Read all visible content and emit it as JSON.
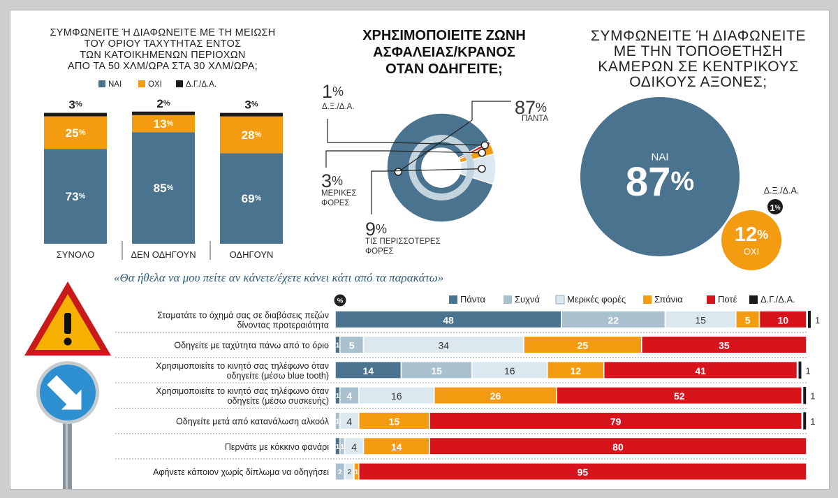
{
  "colors": {
    "dark": "#4a7390",
    "medium": "#a9c0cf",
    "light": "#dce8ef",
    "orange": "#f39c12",
    "red": "#d7141c",
    "black": "#1a1a1a",
    "title": "#2c5c7d",
    "text": "#222222"
  },
  "chart_data": [
    {
      "type": "bar",
      "stacked": true,
      "title_lines": [
        "ΣΥΜΦΩΝΕΙΤΕ Ή ΔΙΑΦΩΝΕΙΤΕ ΜΕ ΤΗ ΜΕΙΩΣΗ",
        "ΤΟΥ ΟΡΙΟΥ ΤΑΧΥΤΗΤΑΣ ΕΝΤΟΣ",
        "ΤΩΝ ΚΑΤΟΙΚΗΜΕΝΩΝ ΠΕΡΙΟΧΩΝ",
        "ΑΠΟ ΤΑ 50 ΧΛΜ/ΩΡΑ ΣΤΑ 30 ΧΛΜ/ΩΡΑ;"
      ],
      "unit": "%",
      "categories": [
        "ΣΥΝΟΛΟ",
        "ΔΕΝ ΟΔΗΓΟΥΝ",
        "ΟΔΗΓΟΥΝ"
      ],
      "series": [
        {
          "name": "ΝΑΙ",
          "values": [
            73,
            85,
            69
          ]
        },
        {
          "name": "ΟΧΙ",
          "values": [
            25,
            13,
            28
          ]
        },
        {
          "name": "Δ.Γ./Δ.Α.",
          "values": [
            3,
            2,
            3
          ]
        }
      ]
    },
    {
      "type": "pie",
      "donut": true,
      "title_lines": [
        "ΧΡΗΣΙΜΟΠΟΙΕΙΤΕ ΖΩΝΗ",
        "ΑΣΦΑΛΕΙΑΣ/ΚΡΑΝΟΣ",
        "ΟΤΑΝ ΟΔΗΓΕΙΤΕ;"
      ],
      "unit": "%",
      "slices": [
        {
          "label_lines": [
            "ΠΑΝΤΑ"
          ],
          "value": 87
        },
        {
          "label_lines": [
            "ΤΙΣ ΠΕΡΙΣΣΟΤΕΡΕΣ",
            "ΦΟΡΕΣ"
          ],
          "value": 9
        },
        {
          "label_lines": [
            "ΜΕΡΙΚΕΣ",
            "ΦΟΡΕΣ"
          ],
          "value": 3
        },
        {
          "label_lines": [
            "Δ.Ξ./Δ.Α."
          ],
          "value": 1
        }
      ]
    },
    {
      "type": "bubble",
      "title_lines": [
        "ΣΥΜΦΩΝΕΙΤΕ Ή ΔΙΑΦΩΝΕΙΤΕ",
        "ΜΕ ΤΗΝ ΤΟΠΟΘΕΤΗΣΗ",
        "ΚΑΜΕΡΩΝ ΣΕ ΚΕΝΤΡΙΚΟΥΣ",
        "ΟΔΙΚΟΥΣ ΑΞΟΝΕΣ;"
      ],
      "unit": "%",
      "items": [
        {
          "label": "ΝΑΙ",
          "value": 87
        },
        {
          "label": "ΟΧΙ",
          "value": 12
        },
        {
          "label": "Δ.Ξ./Δ.Α.",
          "value": 1
        }
      ]
    },
    {
      "type": "bar",
      "orientation": "horizontal",
      "stacked": true,
      "title": "«Θα ήθελα να μου πείτε αν κάνετε/έχετε κάνει κάτι από τα παρακάτω»",
      "unit_badge": "%",
      "series_names": [
        "Πάντα",
        "Συχνά",
        "Μερικές φορές",
        "Σπάνια",
        "Ποτέ",
        "Δ.Γ./Δ.Α."
      ],
      "rows": [
        {
          "label_lines": [
            "Σταματάτε το όχημά σας σε διαβάσεις πεζών",
            "δίνοντας προτεραιότητα"
          ],
          "values": [
            48,
            22,
            15,
            5,
            10,
            1
          ]
        },
        {
          "label_lines": [
            "Οδηγείτε με ταχύτητα πάνω από το όριο"
          ],
          "values": [
            1,
            5,
            34,
            25,
            35,
            0
          ]
        },
        {
          "label_lines": [
            "Χρησιμοποιείτε το κινητό σας τηλέφωνο όταν",
            "οδηγείτε (μέσω blue tooth)"
          ],
          "values": [
            14,
            15,
            16,
            12,
            41,
            1
          ]
        },
        {
          "label_lines": [
            "Χρησιμοποιείτε το κινητό σας τηλέφωνο όταν",
            "οδηγείτε (μέσω συσκευής)"
          ],
          "values": [
            1,
            4,
            16,
            26,
            52,
            1
          ]
        },
        {
          "label_lines": [
            "Οδηγείτε μετά από κατανάλωση αλκοόλ"
          ],
          "values": [
            0,
            1,
            4,
            15,
            79,
            1
          ]
        },
        {
          "label_lines": [
            "Περνάτε με κόκκινο φανάρι"
          ],
          "values": [
            1,
            1,
            4,
            14,
            80,
            0
          ]
        },
        {
          "label_lines": [
            "Αφήνετε κάποιον χωρίς δίπλωμα να οδηγήσει"
          ],
          "values": [
            0,
            2,
            2,
            1,
            95,
            0
          ]
        }
      ]
    }
  ]
}
